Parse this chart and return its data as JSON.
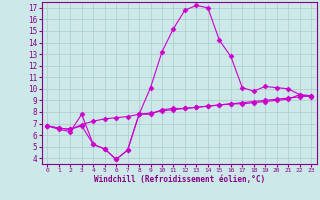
{
  "xlabel": "Windchill (Refroidissement éolien,°C)",
  "x": [
    0,
    1,
    2,
    3,
    4,
    5,
    6,
    7,
    8,
    9,
    10,
    11,
    12,
    13,
    14,
    15,
    16,
    17,
    18,
    19,
    20,
    21,
    22,
    23
  ],
  "line1": [
    6.8,
    6.5,
    6.3,
    7.8,
    5.2,
    4.8,
    3.9,
    4.7,
    7.8,
    7.8,
    8.2,
    8.3,
    8.3,
    8.4,
    8.5,
    8.6,
    8.7,
    8.7,
    8.8,
    8.9,
    9.0,
    9.1,
    9.5,
    9.4
  ],
  "line2": [
    6.8,
    6.6,
    6.5,
    6.9,
    7.2,
    7.4,
    7.5,
    7.6,
    7.8,
    7.9,
    8.1,
    8.2,
    8.3,
    8.4,
    8.5,
    8.6,
    8.7,
    8.8,
    8.9,
    9.0,
    9.1,
    9.2,
    9.3,
    9.4
  ],
  "line3": [
    6.8,
    6.6,
    6.5,
    6.8,
    5.2,
    4.8,
    3.9,
    4.7,
    7.8,
    10.1,
    13.2,
    15.2,
    16.8,
    17.2,
    17.0,
    14.2,
    12.8,
    10.1,
    9.8,
    10.2,
    10.1,
    10.0,
    9.5,
    9.3
  ],
  "line_color": "#cc00cc",
  "marker": "D",
  "bg_color": "#cce8e8",
  "grid_color": "#aacccc",
  "axis_color": "#880088",
  "ylim": [
    3.5,
    17.5
  ],
  "xlim": [
    -0.5,
    23.5
  ],
  "yticks": [
    4,
    5,
    6,
    7,
    8,
    9,
    10,
    11,
    12,
    13,
    14,
    15,
    16,
    17
  ],
  "xticks": [
    0,
    1,
    2,
    3,
    4,
    5,
    6,
    7,
    8,
    9,
    10,
    11,
    12,
    13,
    14,
    15,
    16,
    17,
    18,
    19,
    20,
    21,
    22,
    23
  ]
}
